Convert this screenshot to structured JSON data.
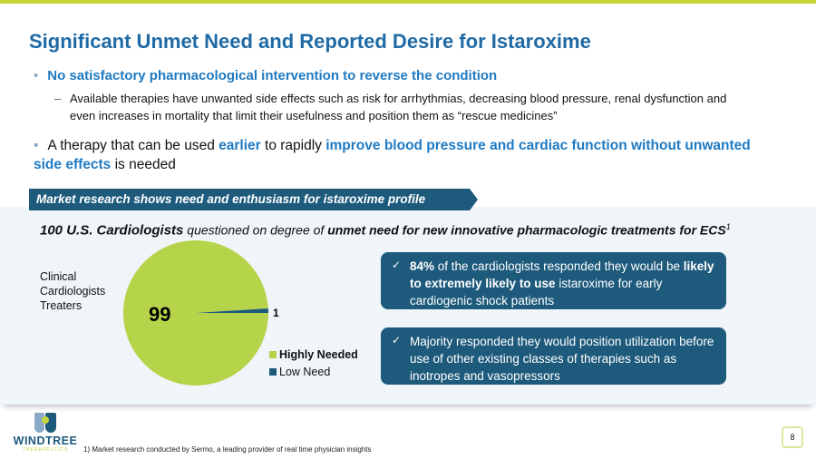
{
  "title": "Significant Unmet Need and Reported Desire for Istaroxime",
  "bullet1": "No satisfactory pharmacological intervention to reverse the condition",
  "bullet1_sub": "Available therapies have unwanted side effects such as risk for arrhythmias, decreasing blood pressure, renal dysfunction and even increases in mortality that limit their usefulness and position them as “rescue medicines”",
  "bullet2": {
    "p1": "A therapy that can be used ",
    "h1": "earlier",
    "p2": " to rapidly ",
    "h2": "improve blood pressure and cardiac function without unwanted side effects",
    "p3": " is needed"
  },
  "banner": "Market research shows need and enthusiasm for istaroxime profile",
  "subhead": {
    "b1": "100 U.S. Cardiologists",
    "p": " questioned on degree of ",
    "b2": "unmet need for new innovative pharmacologic treatments for ECS",
    "sup": "1"
  },
  "group_label": "Clinical Cardiologists Treaters",
  "chart_data": {
    "type": "pie",
    "categories": [
      "Highly Needed",
      "Low Need"
    ],
    "values": [
      99,
      1
    ],
    "colors": [
      "#b5d44a",
      "#1d5a7c"
    ],
    "legend": "bottom-right",
    "data_labels": [
      "99",
      "1"
    ]
  },
  "box1": {
    "check": "✓",
    "b1": "84%",
    "p1": " of the cardiologists responded they would be ",
    "b2": "likely to extremely likely to use",
    "p2": " istaroxime for early cardiogenic shock patients"
  },
  "box2": {
    "check": "✓",
    "text": "Majority responded they would position utilization before use of other existing classes of therapies such as inotropes and vasopressors"
  },
  "logo": {
    "word": "WINDTREE",
    "sub": "THERAPEUTICS"
  },
  "footnote": "1) Market research conducted by Sermo, a leading provider of real time physician insights",
  "page": "8"
}
